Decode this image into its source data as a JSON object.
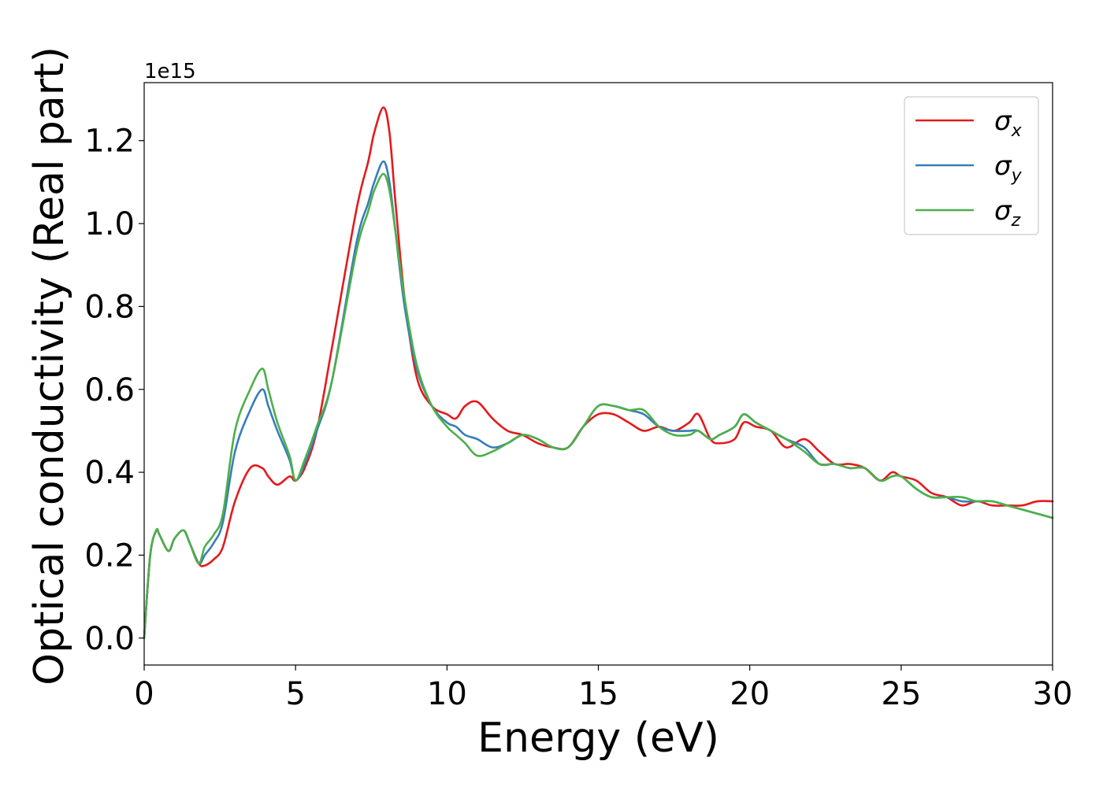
{
  "chart_data": {
    "type": "line",
    "xlabel": "Energy (eV)",
    "ylabel": "Optical conductivity (Real part)",
    "y_offset_label": "1e15",
    "xlim": [
      0,
      30
    ],
    "ylim": [
      -0.065,
      1.34
    ],
    "xticks": [
      0,
      5,
      10,
      15,
      20,
      25,
      30
    ],
    "xtick_labels": [
      "0",
      "5",
      "10",
      "15",
      "20",
      "25",
      "30"
    ],
    "yticks": [
      0.0,
      0.2,
      0.4,
      0.6,
      0.8,
      1.0,
      1.2
    ],
    "ytick_labels": [
      "0.0",
      "0.2",
      "0.4",
      "0.6",
      "0.8",
      "1.0",
      "1.2"
    ],
    "grid": false,
    "legend_position": "top-right",
    "series": [
      {
        "name": "σx",
        "symbol": "σ",
        "subscript": "x",
        "color": "#e41a1c",
        "x": [
          0,
          0.2,
          0.4,
          0.5,
          0.8,
          1.0,
          1.3,
          1.5,
          1.8,
          2.0,
          2.3,
          2.6,
          3.0,
          3.5,
          3.9,
          4.1,
          4.4,
          4.8,
          5.0,
          5.3,
          5.7,
          6.2,
          7.0,
          7.4,
          7.6,
          7.9,
          8.1,
          8.3,
          8.6,
          9.0,
          9.5,
          10.0,
          10.3,
          10.6,
          11.0,
          11.5,
          12.0,
          12.5,
          13.0,
          13.5,
          14.0,
          14.5,
          15.0,
          15.5,
          16.0,
          16.5,
          17.0,
          17.5,
          18.0,
          18.3,
          18.7,
          19.0,
          19.5,
          19.8,
          20.2,
          20.7,
          21.2,
          21.8,
          22.3,
          22.8,
          23.3,
          23.8,
          24.3,
          24.7,
          25.0,
          25.5,
          26.0,
          26.5,
          27.0,
          27.5,
          28.0,
          28.5,
          29.0,
          29.5,
          30.0
        ],
        "y": [
          0,
          0.2,
          0.26,
          0.25,
          0.21,
          0.24,
          0.26,
          0.23,
          0.18,
          0.175,
          0.19,
          0.22,
          0.33,
          0.41,
          0.41,
          0.39,
          0.37,
          0.39,
          0.38,
          0.41,
          0.5,
          0.7,
          1.03,
          1.15,
          1.22,
          1.28,
          1.22,
          1.05,
          0.82,
          0.63,
          0.56,
          0.54,
          0.53,
          0.56,
          0.57,
          0.53,
          0.5,
          0.49,
          0.47,
          0.46,
          0.46,
          0.51,
          0.54,
          0.54,
          0.52,
          0.5,
          0.51,
          0.5,
          0.52,
          0.54,
          0.48,
          0.47,
          0.48,
          0.52,
          0.51,
          0.5,
          0.46,
          0.48,
          0.45,
          0.42,
          0.42,
          0.41,
          0.38,
          0.4,
          0.39,
          0.38,
          0.35,
          0.34,
          0.32,
          0.33,
          0.32,
          0.32,
          0.32,
          0.33,
          0.33
        ]
      },
      {
        "name": "σy",
        "symbol": "σ",
        "subscript": "y",
        "color": "#377eb8",
        "x": [
          0,
          0.2,
          0.4,
          0.5,
          0.8,
          1.0,
          1.3,
          1.5,
          1.8,
          2.0,
          2.3,
          2.6,
          3.0,
          3.5,
          3.9,
          4.1,
          4.4,
          4.8,
          5.0,
          5.3,
          5.7,
          6.2,
          7.0,
          7.4,
          7.6,
          7.9,
          8.1,
          8.3,
          8.6,
          9.0,
          9.5,
          10.0,
          10.3,
          10.6,
          11.0,
          11.5,
          12.0,
          12.5,
          13.0,
          13.5,
          14.0,
          14.5,
          15.0,
          15.5,
          16.0,
          16.5,
          17.0,
          17.5,
          18.0,
          18.3,
          18.7,
          19.0,
          19.5,
          19.8,
          20.2,
          20.7,
          21.2,
          21.8,
          22.3,
          22.8,
          23.3,
          23.8,
          24.3,
          24.7,
          25.0,
          25.5,
          26.0,
          26.5,
          27.0,
          27.5,
          28.0,
          28.5,
          29.0,
          29.5,
          30.0
        ],
        "y": [
          0,
          0.2,
          0.26,
          0.25,
          0.21,
          0.24,
          0.26,
          0.23,
          0.18,
          0.2,
          0.23,
          0.28,
          0.45,
          0.55,
          0.6,
          0.56,
          0.5,
          0.43,
          0.38,
          0.42,
          0.5,
          0.62,
          0.95,
          1.05,
          1.1,
          1.15,
          1.1,
          0.98,
          0.8,
          0.65,
          0.56,
          0.52,
          0.51,
          0.49,
          0.48,
          0.46,
          0.47,
          0.49,
          0.48,
          0.46,
          0.46,
          0.51,
          0.56,
          0.56,
          0.55,
          0.54,
          0.51,
          0.5,
          0.5,
          0.5,
          0.48,
          0.49,
          0.51,
          0.54,
          0.52,
          0.5,
          0.48,
          0.46,
          0.42,
          0.42,
          0.41,
          0.41,
          0.38,
          0.39,
          0.39,
          0.36,
          0.34,
          0.34,
          0.33,
          0.33,
          0.33,
          0.32,
          0.31,
          0.3,
          0.29
        ]
      },
      {
        "name": "σz",
        "symbol": "σ",
        "subscript": "z",
        "color": "#4daf4a",
        "x": [
          0,
          0.2,
          0.4,
          0.5,
          0.8,
          1.0,
          1.3,
          1.5,
          1.8,
          2.0,
          2.3,
          2.6,
          3.0,
          3.5,
          3.9,
          4.1,
          4.4,
          4.8,
          5.0,
          5.3,
          5.7,
          6.2,
          7.0,
          7.4,
          7.6,
          7.9,
          8.1,
          8.3,
          8.6,
          9.0,
          9.5,
          10.0,
          10.3,
          10.6,
          11.0,
          11.5,
          12.0,
          12.5,
          13.0,
          13.5,
          14.0,
          14.5,
          15.0,
          15.5,
          16.0,
          16.5,
          17.0,
          17.5,
          18.0,
          18.3,
          18.7,
          19.0,
          19.5,
          19.8,
          20.2,
          20.7,
          21.2,
          21.8,
          22.3,
          22.8,
          23.3,
          23.8,
          24.3,
          24.7,
          25.0,
          25.5,
          26.0,
          26.5,
          27.0,
          27.5,
          28.0,
          28.5,
          29.0,
          29.5,
          30.0
        ],
        "y": [
          0,
          0.2,
          0.26,
          0.25,
          0.21,
          0.24,
          0.26,
          0.23,
          0.18,
          0.22,
          0.25,
          0.3,
          0.5,
          0.6,
          0.65,
          0.6,
          0.52,
          0.44,
          0.38,
          0.43,
          0.51,
          0.62,
          0.93,
          1.03,
          1.08,
          1.12,
          1.08,
          0.98,
          0.82,
          0.66,
          0.56,
          0.51,
          0.49,
          0.47,
          0.44,
          0.45,
          0.47,
          0.49,
          0.48,
          0.46,
          0.46,
          0.51,
          0.56,
          0.56,
          0.55,
          0.55,
          0.51,
          0.49,
          0.49,
          0.5,
          0.48,
          0.49,
          0.51,
          0.54,
          0.52,
          0.5,
          0.48,
          0.45,
          0.42,
          0.42,
          0.41,
          0.41,
          0.38,
          0.39,
          0.39,
          0.36,
          0.34,
          0.34,
          0.34,
          0.33,
          0.33,
          0.32,
          0.31,
          0.3,
          0.29
        ]
      }
    ]
  }
}
